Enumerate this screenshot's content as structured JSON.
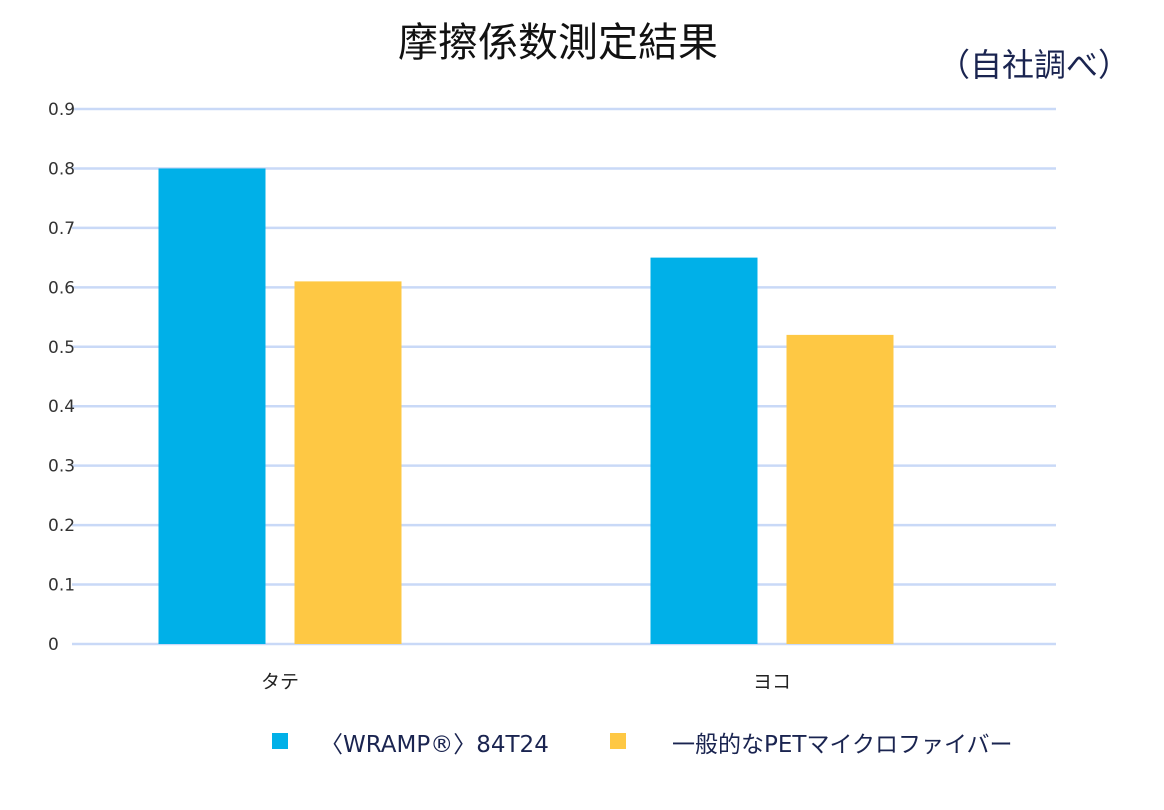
{
  "chart_data": {
    "type": "bar",
    "title": "摩擦係数測定結果",
    "subtitle": "（自社調べ）",
    "categories": [
      "タテ",
      "ヨコ"
    ],
    "series": [
      {
        "name": "〈WRAMP®〉84T24",
        "color": "#00b0e8",
        "values": [
          0.8,
          0.65
        ]
      },
      {
        "name": "一般的なPETマイクロファイバー",
        "color": "#fec844",
        "values": [
          0.61,
          0.52
        ]
      }
    ],
    "ylim": [
      0,
      0.9
    ],
    "yticks": [
      "0",
      "0.1",
      "0.2",
      "0.3",
      "0.4",
      "0.5",
      "0.6",
      "0.7",
      "0.8",
      "0.9"
    ],
    "xlabel": "",
    "ylabel": "",
    "grid": true,
    "grid_color": "#c9d9f7",
    "legend_position": "bottom"
  }
}
